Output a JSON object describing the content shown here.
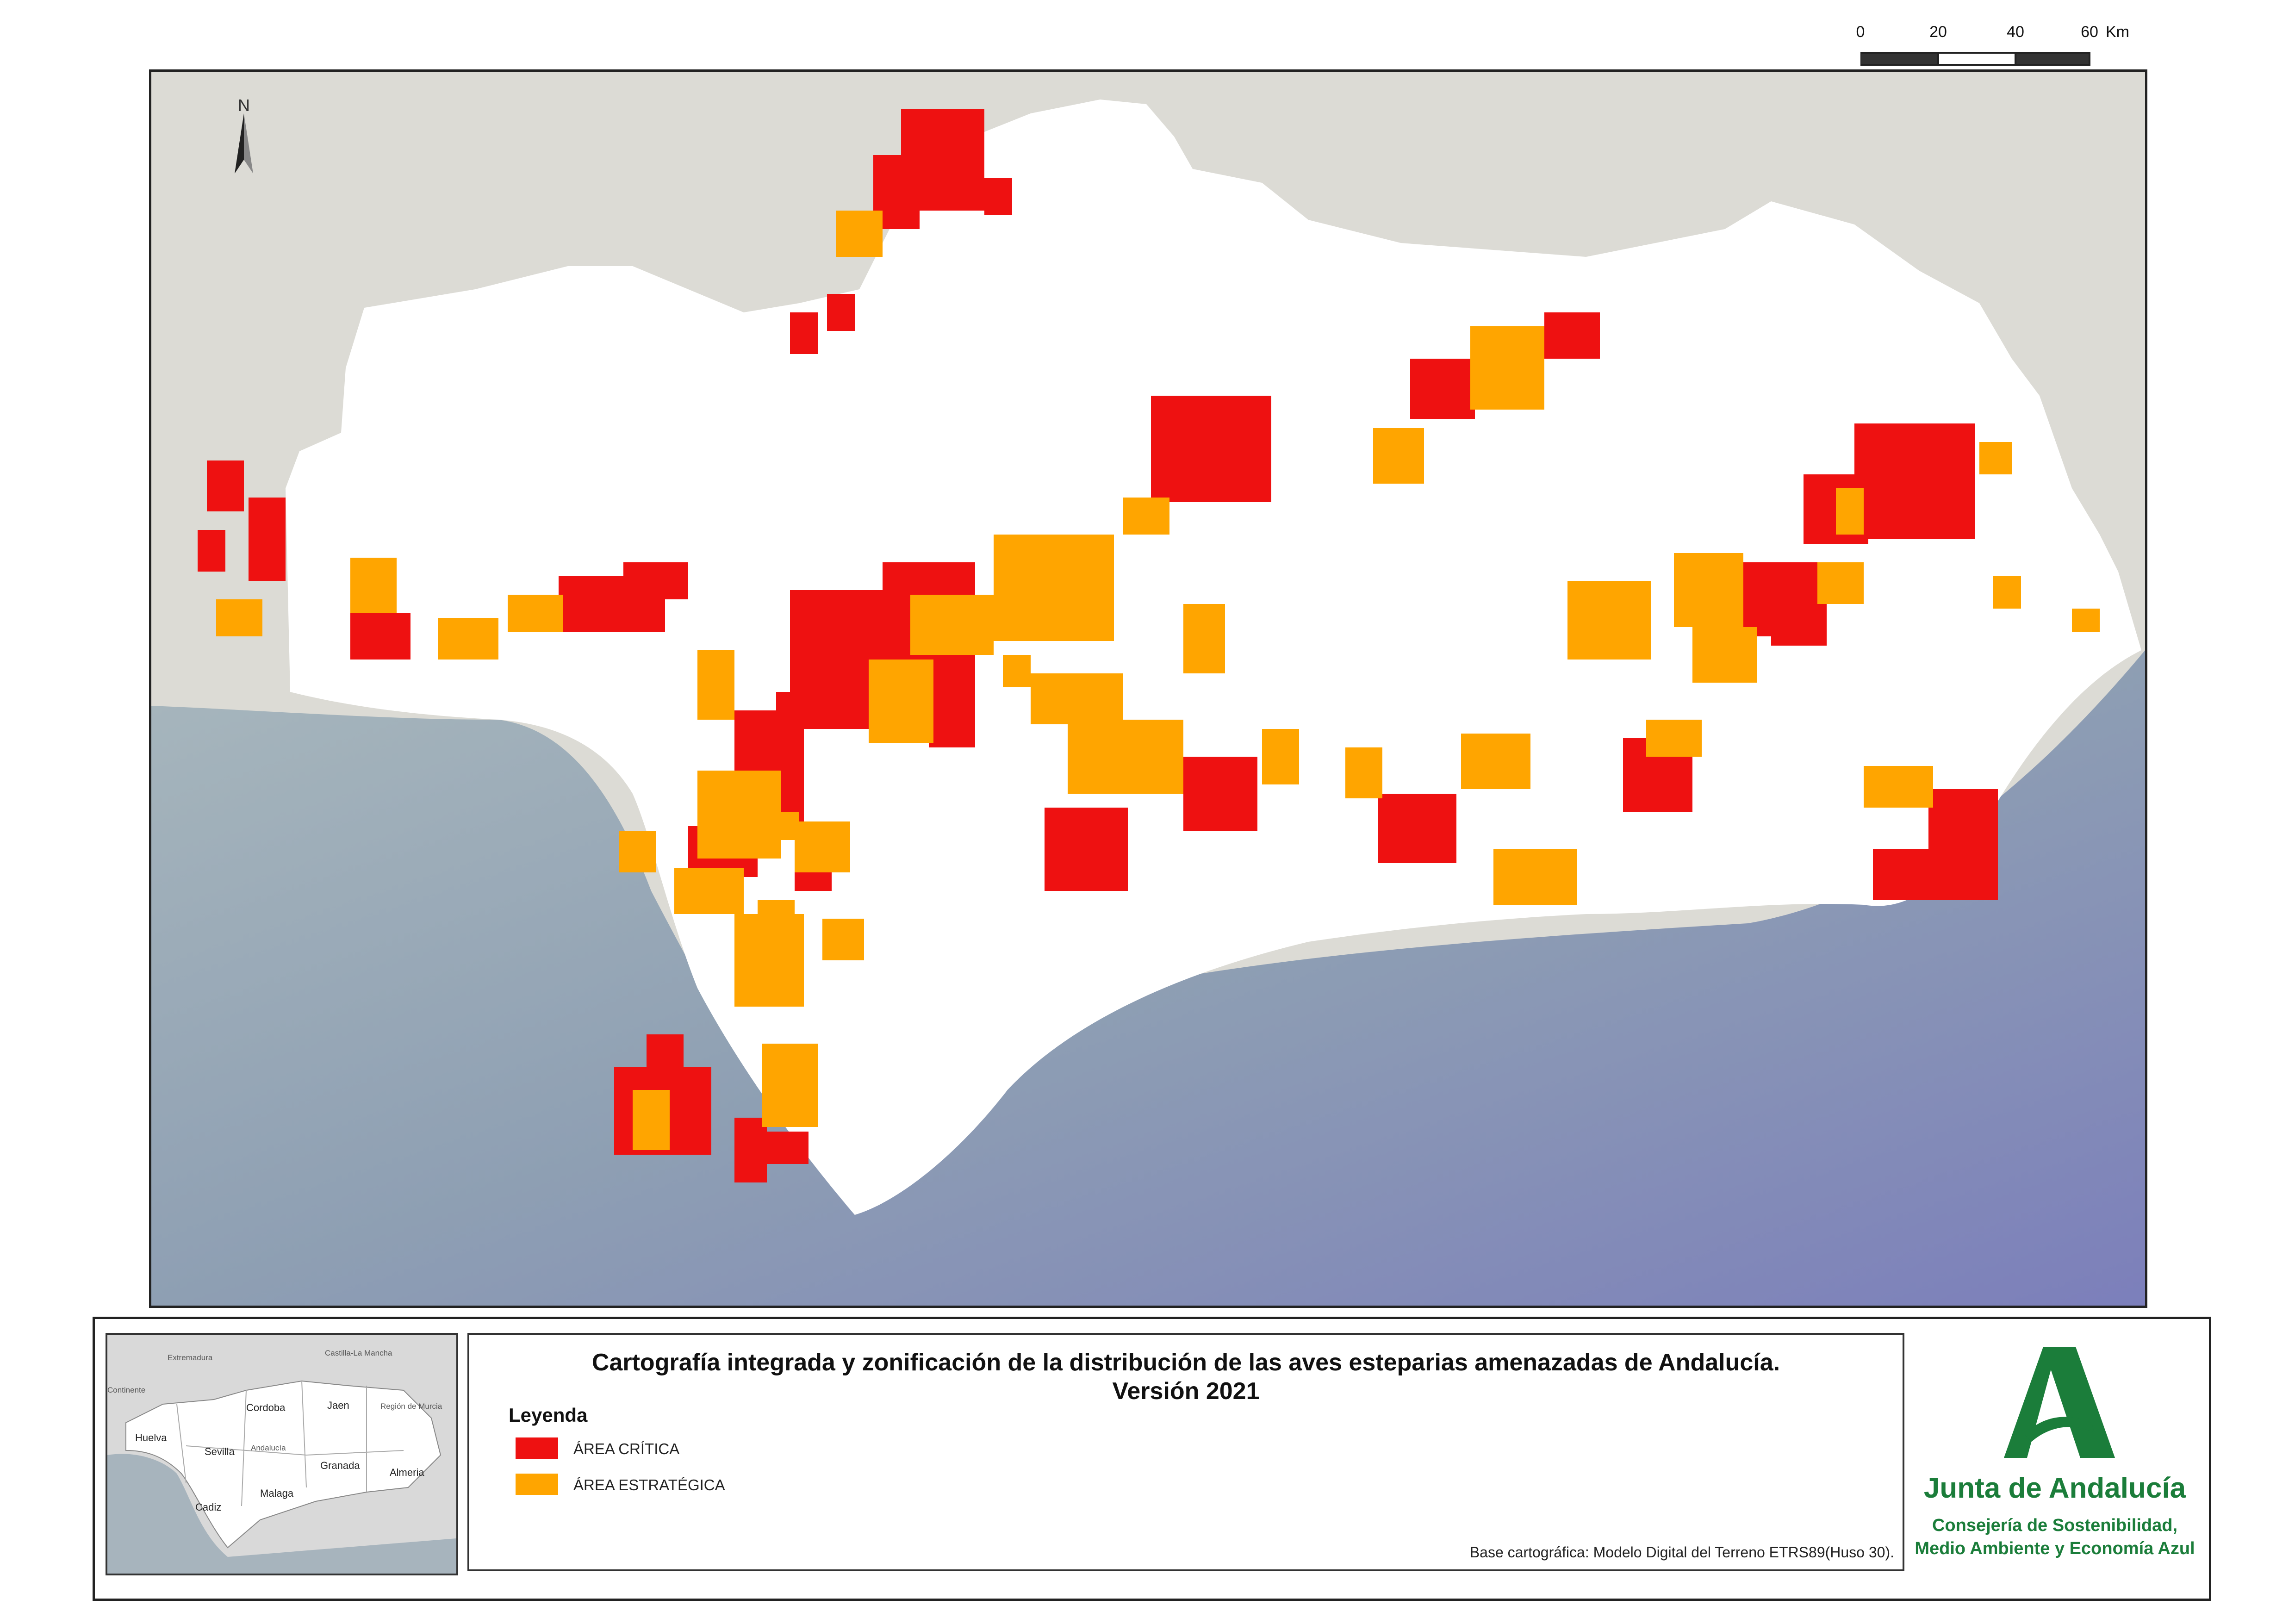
{
  "map": {
    "north_arrow": {
      "icon": "north-arrow-icon",
      "label": "N"
    },
    "scale_bar": {
      "ticks": [
        "0",
        "20",
        "40",
        "60"
      ],
      "unit": "Km"
    },
    "colors": {
      "land_outside": "#dcdbd5",
      "sea": "#8fa3ae",
      "sea_deep": "#7f83bb",
      "study_area": "#ffffff",
      "critical": "#ee1111",
      "strategic": "#ffa500"
    }
  },
  "overview": {
    "labels": [
      "Extremadura",
      "Castilla-La Mancha",
      "Continente",
      "Cordoba",
      "Jaen",
      "Región de Murcia",
      "Huelva",
      "Sevilla",
      "Andalucía",
      "Granada",
      "Almeria",
      "Malaga",
      "Cadiz"
    ]
  },
  "title": {
    "line1": "Cartografía integrada y zonificación de la distribución de las aves esteparias amenazadas de Andalucía.",
    "line2": "Versión 2021"
  },
  "legend": {
    "title": "Leyenda",
    "items": [
      {
        "label": "ÁREA CRÍTICA",
        "color": "#ee1111"
      },
      {
        "label": "ÁREA ESTRATÉGICA",
        "color": "#ffa500"
      }
    ]
  },
  "credit": "Base cartográfica: Modelo Digital del Terreno ETRS89(Huso 30).",
  "logo": {
    "name": "Junta de Andalucía",
    "sub1": "Consejería de Sostenibilidad,",
    "sub2": "Medio Ambiente y Economía Azul",
    "color": "#1b7d3a"
  }
}
